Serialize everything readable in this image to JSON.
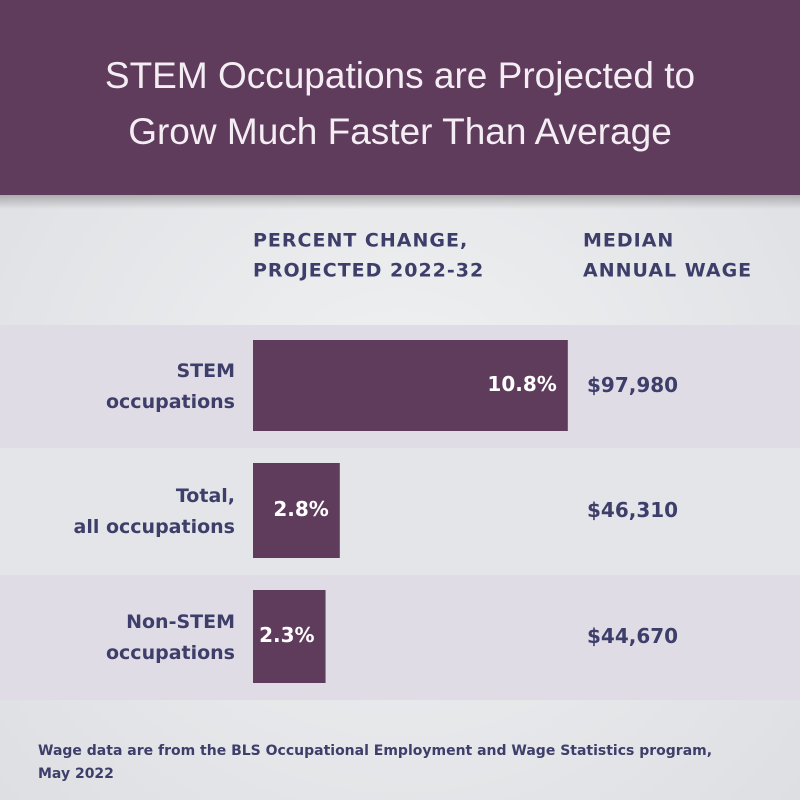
{
  "chart_data": {
    "type": "bar",
    "title": [
      "STEM Occupations are Projected to",
      "Grow Much Faster Than Average"
    ],
    "value_header": [
      "PERCENT CHANGE,",
      "PROJECTED 2022-32"
    ],
    "wage_header": [
      "MEDIAN",
      "ANNUAL WAGE"
    ],
    "categories": [
      [
        "STEM",
        "occupations"
      ],
      [
        "Total,",
        "all occupations"
      ],
      [
        "Non-STEM",
        "occupations"
      ]
    ],
    "values": [
      10.8,
      2.8,
      2.3
    ],
    "value_labels": [
      "10.8%",
      "2.8%",
      "2.3%"
    ],
    "wages": [
      "$97,980",
      "$46,310",
      "$44,670"
    ],
    "color": "#5f3b5c",
    "footnote": [
      "Wage data are from the BLS Occupational Employment and Wage Statistics program,",
      "May 2022"
    ]
  }
}
